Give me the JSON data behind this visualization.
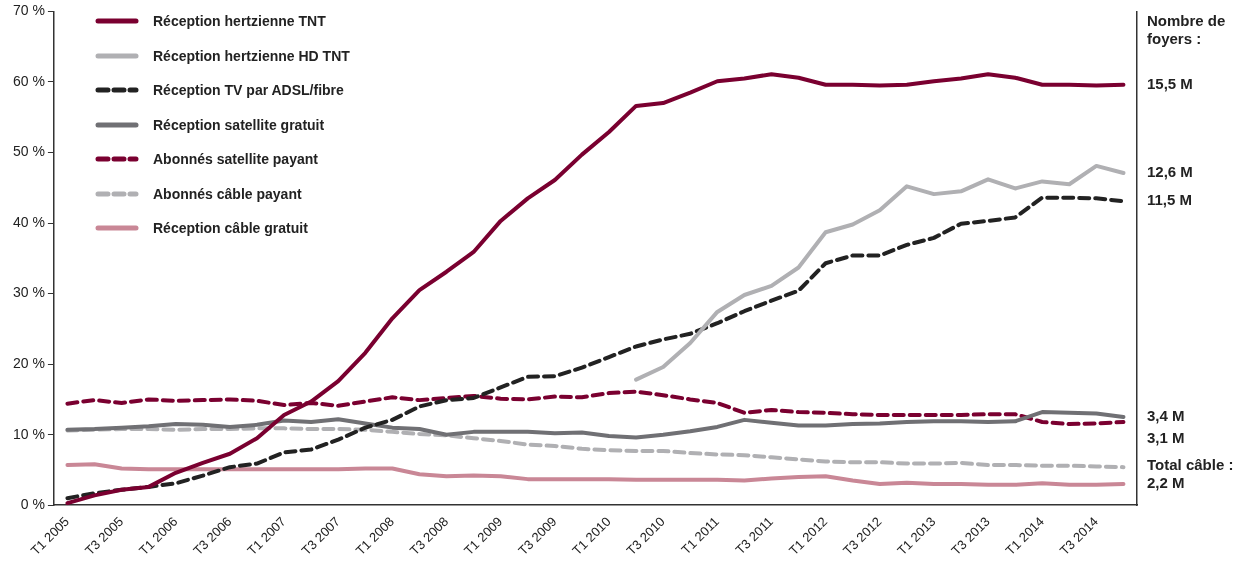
{
  "chart_data": {
    "type": "line",
    "categories": [
      "T1 2005",
      null,
      "T3 2005",
      null,
      "T1 2006",
      null,
      "T3 2006",
      null,
      "T1 2007",
      null,
      "T3 2007",
      null,
      "T1 2008",
      null,
      "T3 2008",
      null,
      "T1 2009",
      null,
      "T3 2009",
      null,
      "T1 2010",
      null,
      "T3 2010",
      null,
      "T1 2011",
      null,
      "T3 2011",
      null,
      "T1 2012",
      null,
      "T3 2012",
      null,
      "T1 2013",
      null,
      "T3 2013",
      null,
      "T1 2014",
      null,
      "T3 2014",
      null
    ],
    "ylim": [
      0,
      70
    ],
    "yticks": [
      {
        "value": 0,
        "label": "0 %"
      },
      {
        "value": 10,
        "label": "10 %"
      },
      {
        "value": 20,
        "label": "20 %"
      },
      {
        "value": 30,
        "label": "30 %"
      },
      {
        "value": 40,
        "label": "40 %"
      },
      {
        "value": 50,
        "label": "50 %"
      },
      {
        "value": 60,
        "label": "60 %"
      },
      {
        "value": 70,
        "label": "70 %"
      }
    ],
    "grid": false,
    "legend": "top left",
    "marker": "none",
    "series": [
      {
        "name": "Réception hertzienne TNT",
        "color": "#7a0030",
        "line_style": "solid",
        "values": [
          0.3,
          1.4,
          2.2,
          2.6,
          4.6,
          6.0,
          7.3,
          9.5,
          12.8,
          14.7,
          17.6,
          21.6,
          26.5,
          30.5,
          33.1,
          35.9,
          40.3,
          43.5,
          46.1,
          49.7,
          52.9,
          56.6,
          57.0,
          58.5,
          60.1,
          60.5,
          61.1,
          60.6,
          59.6,
          59.6,
          59.5,
          59.6,
          60.1,
          60.5,
          61.1,
          60.6,
          59.6,
          59.6,
          59.5,
          59.6
        ]
      },
      {
        "name": "Réception hertzienne HD TNT",
        "color": "#b0b0b3",
        "line_style": "solid",
        "values": [
          null,
          null,
          null,
          null,
          null,
          null,
          null,
          null,
          null,
          null,
          null,
          null,
          null,
          null,
          null,
          null,
          null,
          null,
          null,
          null,
          null,
          17.8,
          19.6,
          23.0,
          27.4,
          29.8,
          31.1,
          33.7,
          38.7,
          39.8,
          41.8,
          45.2,
          44.1,
          44.5,
          46.2,
          44.9,
          45.9,
          45.5,
          48.1,
          47.1
        ]
      },
      {
        "name": "Réception TV par ADSL/fibre",
        "color": "#222222",
        "line_style": "dashed",
        "values": [
          1.0,
          1.7,
          2.2,
          2.6,
          3.1,
          4.2,
          5.4,
          5.9,
          7.5,
          7.9,
          9.3,
          11.0,
          12.1,
          14.0,
          14.9,
          15.2,
          16.7,
          18.2,
          18.3,
          19.5,
          21.0,
          22.5,
          23.5,
          24.3,
          25.8,
          27.5,
          29.0,
          30.4,
          34.3,
          35.4,
          35.4,
          36.9,
          37.9,
          39.9,
          40.3,
          40.8,
          43.6,
          43.6,
          43.5,
          43.1
        ]
      },
      {
        "name": "Réception satellite gratuit",
        "color": "#707074",
        "line_style": "solid",
        "values": [
          10.7,
          10.8,
          11.0,
          11.2,
          11.5,
          11.4,
          11.1,
          11.4,
          12.0,
          11.8,
          12.2,
          11.6,
          11.0,
          10.8,
          10.0,
          10.4,
          10.4,
          10.4,
          10.2,
          10.3,
          9.8,
          9.6,
          10.0,
          10.5,
          11.1,
          12.1,
          11.7,
          11.3,
          11.3,
          11.5,
          11.6,
          11.8,
          11.9,
          11.9,
          11.8,
          11.9,
          13.2,
          13.1,
          13.0,
          12.5
        ]
      },
      {
        "name": "Abonnés satellite payant",
        "color": "#7a0030",
        "line_style": "dashed",
        "values": [
          14.4,
          14.9,
          14.5,
          15.0,
          14.8,
          14.9,
          15.0,
          14.8,
          14.2,
          14.5,
          14.1,
          14.7,
          15.3,
          14.9,
          15.2,
          15.5,
          15.1,
          15.0,
          15.4,
          15.3,
          15.9,
          16.1,
          15.6,
          15.0,
          14.5,
          13.1,
          13.5,
          13.2,
          13.1,
          12.9,
          12.8,
          12.8,
          12.8,
          12.8,
          12.9,
          12.9,
          11.8,
          11.5,
          11.6,
          11.8
        ]
      },
      {
        "name": "Abonnés câble payant",
        "color": "#b0b0b3",
        "line_style": "dashed",
        "values": [
          10.6,
          10.7,
          10.8,
          10.8,
          10.7,
          10.8,
          10.8,
          10.9,
          10.9,
          10.8,
          10.8,
          10.7,
          10.4,
          10.1,
          9.9,
          9.5,
          9.1,
          8.6,
          8.4,
          8.0,
          7.8,
          7.7,
          7.7,
          7.4,
          7.2,
          7.1,
          6.8,
          6.5,
          6.2,
          6.1,
          6.1,
          5.9,
          5.9,
          6.0,
          5.7,
          5.7,
          5.6,
          5.6,
          5.5,
          5.4
        ]
      },
      {
        "name": "Réception câble gratuit",
        "color": "#c98796",
        "line_style": "solid",
        "values": [
          5.7,
          5.8,
          5.2,
          5.1,
          5.1,
          5.1,
          5.1,
          5.1,
          5.1,
          5.1,
          5.1,
          5.2,
          5.2,
          4.4,
          4.1,
          4.2,
          4.1,
          3.7,
          3.7,
          3.7,
          3.7,
          3.6,
          3.6,
          3.6,
          3.6,
          3.5,
          3.8,
          4.0,
          4.1,
          3.5,
          3.0,
          3.2,
          3.0,
          3.0,
          2.9,
          2.9,
          3.1,
          2.9,
          2.9,
          3.0
        ]
      }
    ],
    "annotations": [
      "Nombre de foyers :",
      "15,5 M",
      "12,6 M",
      "11,5 M",
      "3,4 M",
      "3,1 M",
      "Total câble : 2,2 M"
    ]
  }
}
